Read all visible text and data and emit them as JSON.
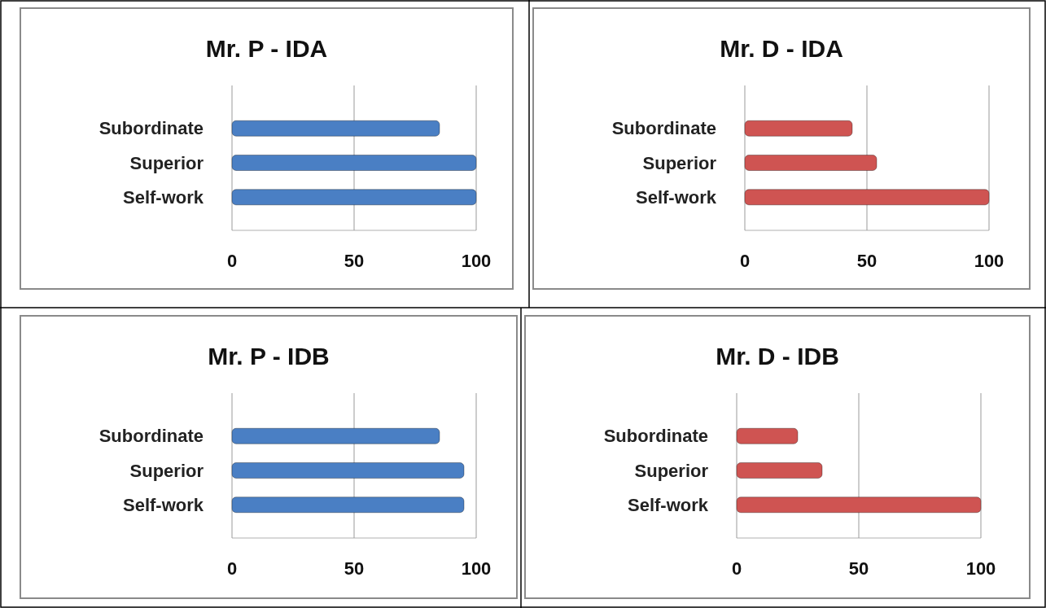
{
  "chart_data": [
    {
      "type": "bar",
      "orientation": "horizontal",
      "title": "Mr. P - IDA",
      "categories": [
        "Subordinate",
        "Superior",
        "Self-work"
      ],
      "values": [
        85,
        100,
        100
      ],
      "color": "#4a7fc4",
      "xlim": [
        0,
        100
      ],
      "xticks": [
        0,
        50,
        100
      ],
      "grid": "x"
    },
    {
      "type": "bar",
      "orientation": "horizontal",
      "title": "Mr. D - IDA",
      "categories": [
        "Subordinate",
        "Superior",
        "Self-work"
      ],
      "values": [
        44,
        54,
        100
      ],
      "color": "#cf5452",
      "xlim": [
        0,
        100
      ],
      "xticks": [
        0,
        50,
        100
      ],
      "grid": "x"
    },
    {
      "type": "bar",
      "orientation": "horizontal",
      "title": "Mr. P - IDB",
      "categories": [
        "Subordinate",
        "Superior",
        "Self-work"
      ],
      "values": [
        85,
        95,
        95
      ],
      "color": "#4a7fc4",
      "xlim": [
        0,
        100
      ],
      "xticks": [
        0,
        50,
        100
      ],
      "grid": "x"
    },
    {
      "type": "bar",
      "orientation": "horizontal",
      "title": "Mr. D - IDB",
      "categories": [
        "Subordinate",
        "Superior",
        "Self-work"
      ],
      "values": [
        25,
        35,
        100
      ],
      "color": "#cf5452",
      "xlim": [
        0,
        100
      ],
      "xticks": [
        0,
        50,
        100
      ],
      "grid": "x"
    }
  ]
}
